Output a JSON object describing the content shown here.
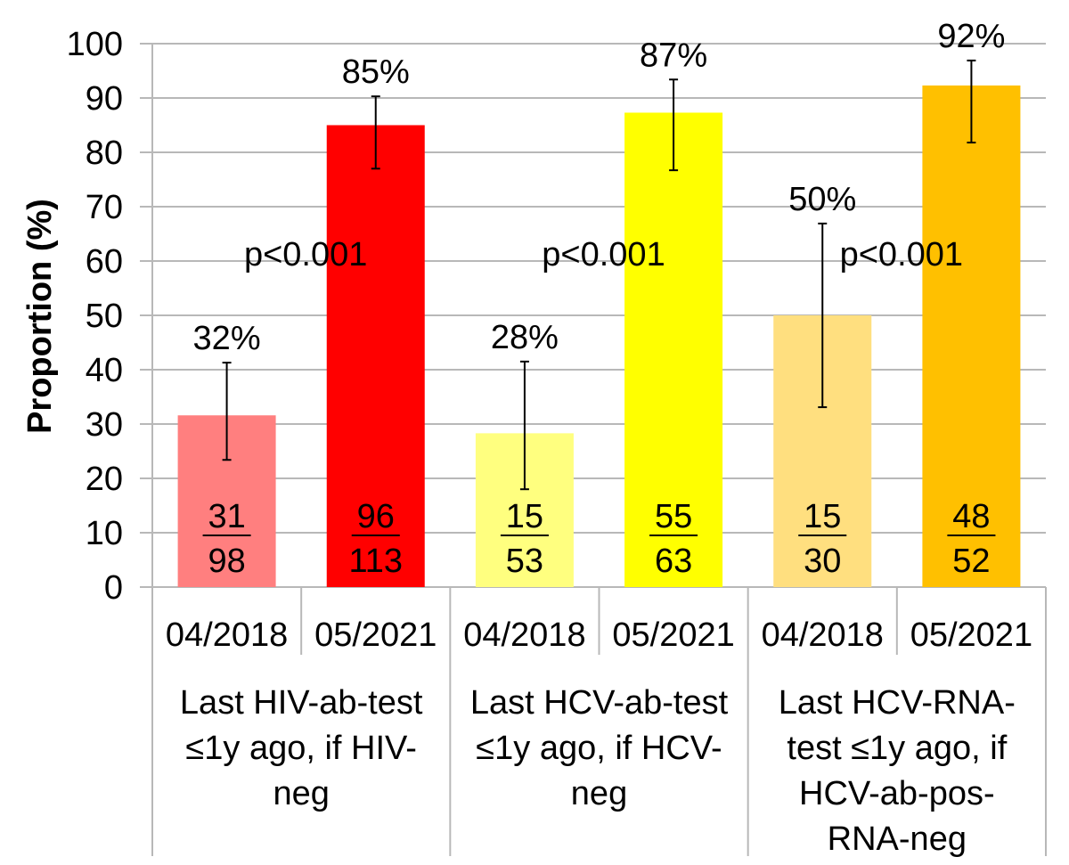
{
  "chart_data": {
    "type": "bar",
    "title": "",
    "xlabel": "",
    "ylabel": "Proportion (%)",
    "ylim": [
      0,
      100
    ],
    "yticks": [
      0,
      10,
      20,
      30,
      40,
      50,
      60,
      70,
      80,
      90,
      100
    ],
    "grid": true,
    "legend": "none",
    "groups": [
      {
        "label_lines": [
          "Last HIV-ab-test",
          "≤1y ago, if HIV-",
          "neg"
        ],
        "p_value": "p<0.001",
        "bars": [
          {
            "category": "04/2018",
            "value": 31.6,
            "label": "32%",
            "numerator": "31",
            "denominator": "98",
            "ci_low": 23.4,
            "ci_high": 41.3,
            "color": "#FF7F7F"
          },
          {
            "category": "05/2021",
            "value": 85.0,
            "label": "85%",
            "numerator": "96",
            "denominator": "113",
            "ci_low": 77.0,
            "ci_high": 90.3,
            "color": "#FF0000"
          }
        ]
      },
      {
        "label_lines": [
          "Last HCV-ab-test",
          "≤1y ago, if HCV-",
          "neg"
        ],
        "p_value": "p<0.001",
        "bars": [
          {
            "category": "04/2018",
            "value": 28.3,
            "label": "28%",
            "numerator": "15",
            "denominator": "53",
            "ci_low": 18.0,
            "ci_high": 41.5,
            "color": "#FFFF7F"
          },
          {
            "category": "05/2021",
            "value": 87.3,
            "label": "87%",
            "numerator": "55",
            "denominator": "63",
            "ci_low": 76.7,
            "ci_high": 93.4,
            "color": "#FFFF00"
          }
        ]
      },
      {
        "label_lines": [
          "Last HCV-RNA-",
          "test ≤1y ago, if",
          "HCV-ab-pos-",
          "RNA-neg"
        ],
        "p_value": "p<0.001",
        "bars": [
          {
            "category": "04/2018",
            "value": 50.0,
            "label": "50%",
            "numerator": "15",
            "denominator": "30",
            "ci_low": 33.1,
            "ci_high": 66.9,
            "color": "#FFDF7F"
          },
          {
            "category": "05/2021",
            "value": 92.3,
            "label": "92%",
            "numerator": "48",
            "denominator": "52",
            "ci_low": 81.8,
            "ci_high": 96.9,
            "color": "#FFC000"
          }
        ]
      }
    ]
  }
}
